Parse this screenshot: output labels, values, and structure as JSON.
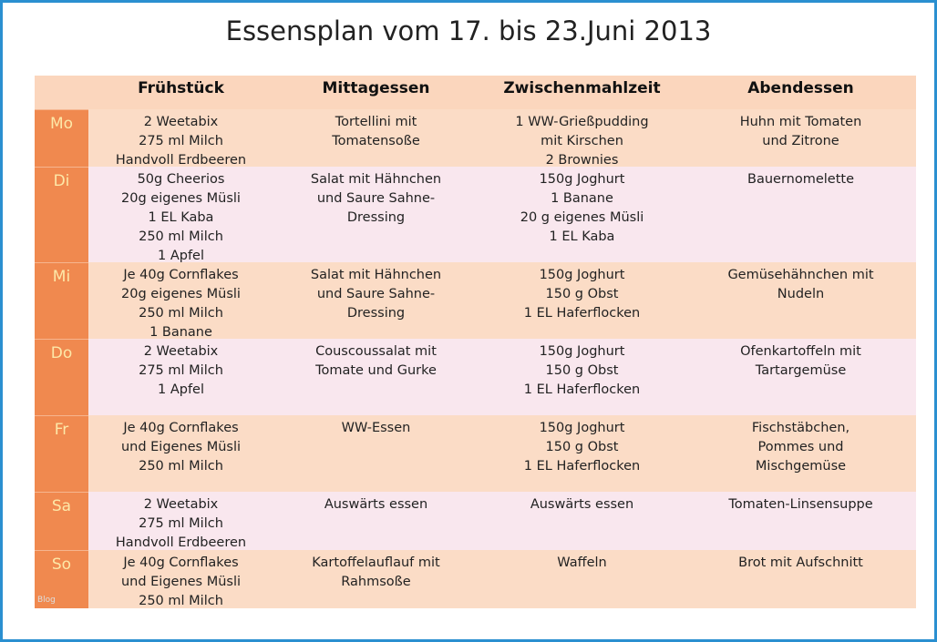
{
  "title": "Essensplan vom 17. bis 23.Juni 2013",
  "header": [
    "Frühstück",
    "Mittagessen",
    "Zwischenmahlzeit",
    "Abendessen"
  ],
  "rows": [
    {
      "day": "Mo",
      "cells": [
        [
          "2 Weetabix",
          "275 ml Milch",
          "Handvoll Erdbeeren"
        ],
        [
          "Tortellini mit",
          "Tomatensoße"
        ],
        [
          "1 WW-Grießpudding",
          "mit Kirschen",
          "2 Brownies"
        ],
        [
          "Huhn mit Tomaten",
          "und Zitrone"
        ]
      ]
    },
    {
      "day": "Di",
      "cells": [
        [
          "50g Cheerios",
          "20g eigenes Müsli",
          "1 EL Kaba",
          "250 ml Milch",
          "1 Apfel"
        ],
        [
          "Salat mit Hähnchen",
          "und Saure Sahne-",
          "Dressing"
        ],
        [
          "150g Joghurt",
          "1 Banane",
          "20 g eigenes Müsli",
          "1 EL Kaba"
        ],
        [
          "Bauernomelette"
        ]
      ]
    },
    {
      "day": "Mi",
      "cells": [
        [
          "Je 40g Cornflakes",
          "20g eigenes Müsli",
          "250 ml Milch",
          "1 Banane"
        ],
        [
          "Salat mit Hähnchen",
          "und Saure Sahne-",
          "Dressing"
        ],
        [
          "150g Joghurt",
          "150 g Obst",
          "1 EL Haferflocken"
        ],
        [
          "Gemüsehähnchen mit",
          "Nudeln"
        ]
      ]
    },
    {
      "day": "Do",
      "cells": [
        [
          "2 Weetabix",
          "275 ml Milch",
          "1 Apfel"
        ],
        [
          "Couscoussalat mit",
          "Tomate und Gurke"
        ],
        [
          "150g Joghurt",
          "150 g Obst",
          "1 EL Haferflocken"
        ],
        [
          "Ofenkartoffeln mit",
          "Tartargemüse"
        ]
      ]
    },
    {
      "day": "Fr",
      "cells": [
        [
          "Je 40g Cornflakes",
          "und Eigenes Müsli",
          "250 ml Milch"
        ],
        [
          "WW-Essen"
        ],
        [
          "150g Joghurt",
          "150 g Obst",
          "1 EL Haferflocken"
        ],
        [
          "Fischstäbchen,",
          "Pommes und",
          "Mischgemüse"
        ]
      ]
    },
    {
      "day": "Sa",
      "cells": [
        [
          "2 Weetabix",
          "275 ml Milch",
          "Handvoll Erdbeeren"
        ],
        [
          "Auswärts essen"
        ],
        [
          "Auswärts essen"
        ],
        [
          "Tomaten-Linsensuppe"
        ]
      ]
    },
    {
      "day": "So",
      "cells": [
        [
          "Je 40g Cornflakes",
          "und Eigenes Müsli",
          "250 ml Milch"
        ],
        [
          "Kartoffelauflauf mit",
          "Rahmsoße"
        ],
        [
          "Waffeln"
        ],
        [
          "Brot mit Aufschnitt"
        ]
      ]
    }
  ],
  "watermark": "Blog"
}
